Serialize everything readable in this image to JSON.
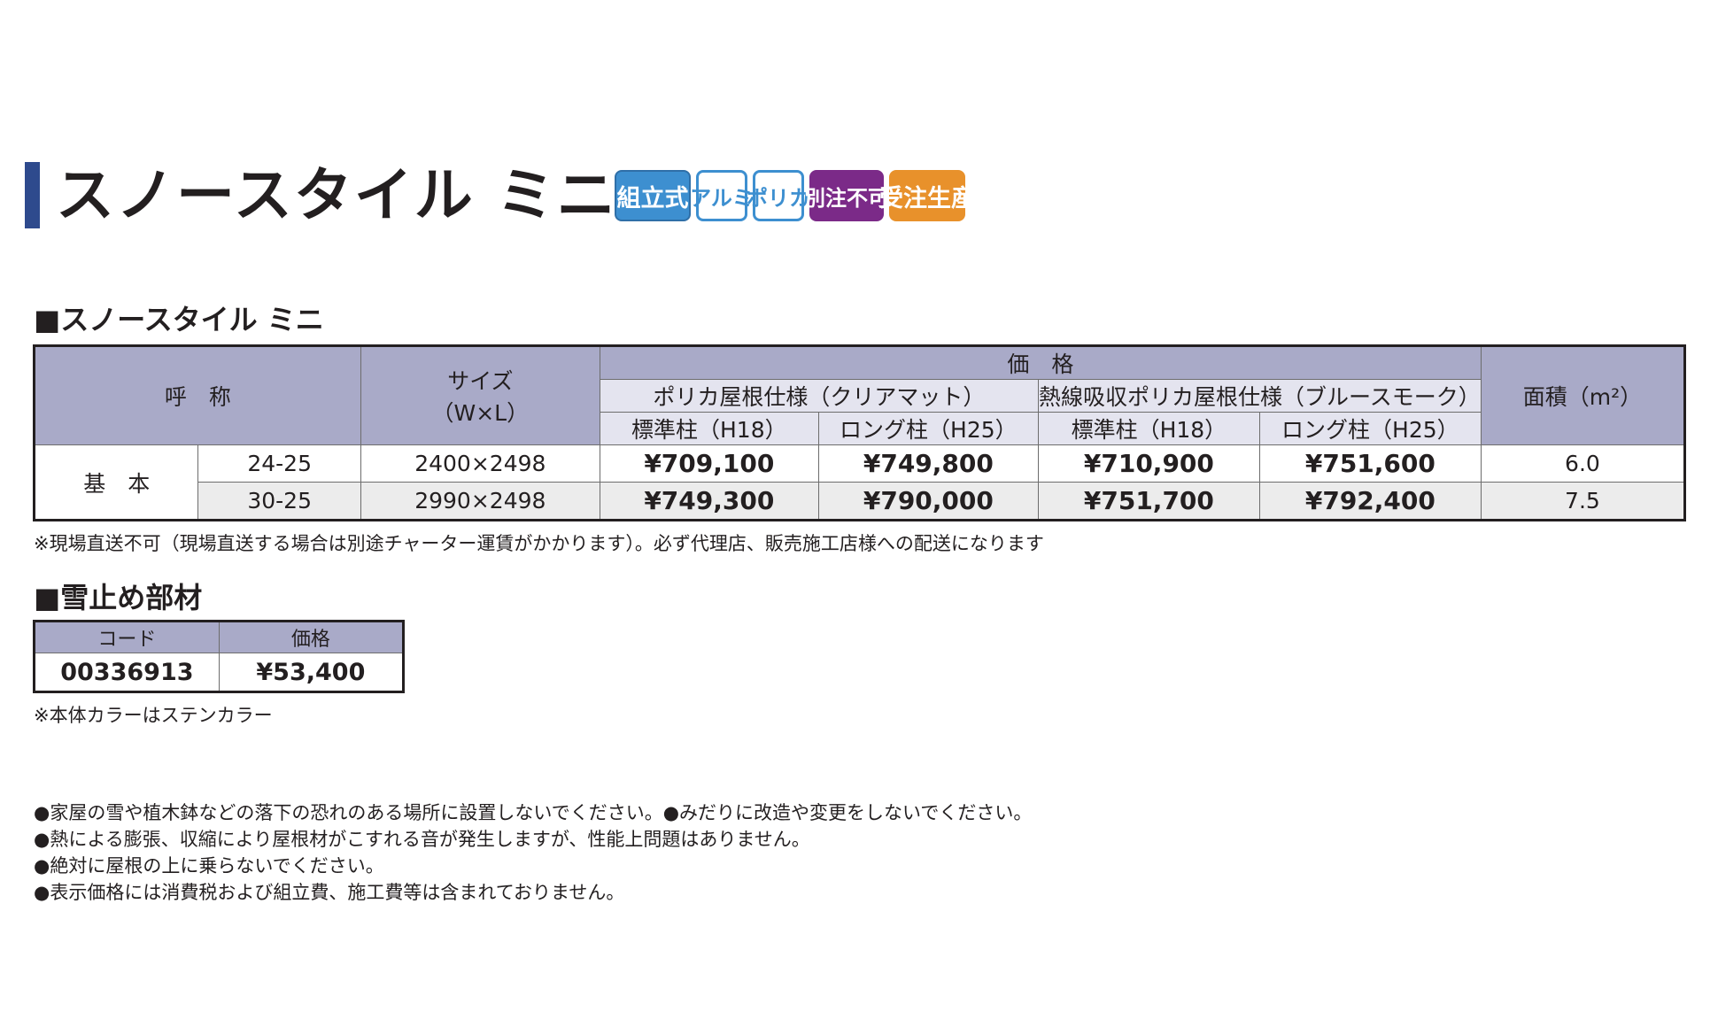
{
  "title": "スノースタイル ミニ",
  "badges": [
    {
      "label": "組立式",
      "color": "#3d8fd0"
    },
    {
      "label": "アルミ",
      "color": "#3d8fd0"
    },
    {
      "label": "ポリカ",
      "color": "#3d8fd0"
    },
    {
      "label": "別注不可",
      "color": "#7b2a88"
    },
    {
      "label": "受注生産",
      "color": "#e8912b"
    }
  ],
  "section1": {
    "heading": "■スノースタイル ミニ",
    "table": {
      "col_name": "呼　称",
      "col_size": "サイズ",
      "col_size_unit": "（W×L）",
      "col_price": "価　格",
      "group1": "ポリカ屋根仕様（クリアマット）",
      "group2": "熱線吸収ポリカ屋根仕様（ブルースモーク）",
      "sub_std": "標準柱（H18）",
      "sub_long": "ロング柱（H25）",
      "col_area": "面積（m²）",
      "row_group_label": "基　本",
      "rows": [
        {
          "code": "24-25",
          "size": "2400×2498",
          "p1": "¥709,100",
          "p2": "¥749,800",
          "p3": "¥710,900",
          "p4": "¥751,600",
          "area": "6.0"
        },
        {
          "code": "30-25",
          "size": "2990×2498",
          "p1": "¥749,300",
          "p2": "¥790,000",
          "p3": "¥751,700",
          "p4": "¥792,400",
          "area": "7.5"
        }
      ]
    },
    "note": "※現場直送不可（現場直送する場合は別途チャーター運賃がかかります）。必ず代理店、販売施工店様への配送になります"
  },
  "section2": {
    "heading": "■雪止め部材",
    "col_code": "コード",
    "col_price": "価格",
    "code": "00336913",
    "price": "¥53,400",
    "note": "※本体カラーはステンカラー"
  },
  "cautions": [
    "●家屋の雪や植木鉢などの落下の恐れのある場所に設置しないでください。●みだりに改造や変更をしないでください。",
    "●熱による膨張、収縮により屋根材がこすれる音が発生しますが、性能上問題はありません。",
    "●絶対に屋根の上に乗らないでください。",
    "●表示価格には消費税および組立費、施工費等は含まれておりません。"
  ]
}
